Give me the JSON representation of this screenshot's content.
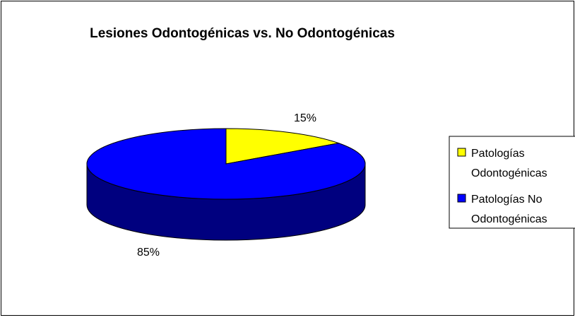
{
  "chart_data": {
    "type": "pie",
    "style": "3d",
    "title": "Lesiones Odontogénicas vs. No Odontogénicas",
    "slices": [
      {
        "name": "Patologías Odontogénicas",
        "value": 15,
        "label": "15%",
        "color": "#ffff00"
      },
      {
        "name": "Patologías No Odontogénicas",
        "value": 85,
        "label": "85%",
        "color": "#0000ff"
      }
    ],
    "legend": {
      "position": "right",
      "entries": [
        [
          "Patologías",
          "Odontogénicas"
        ],
        [
          "Patologías No",
          "Odontogénicas"
        ]
      ]
    },
    "side_color": "#00007f",
    "side_color_yellow": "#9b9b00"
  }
}
